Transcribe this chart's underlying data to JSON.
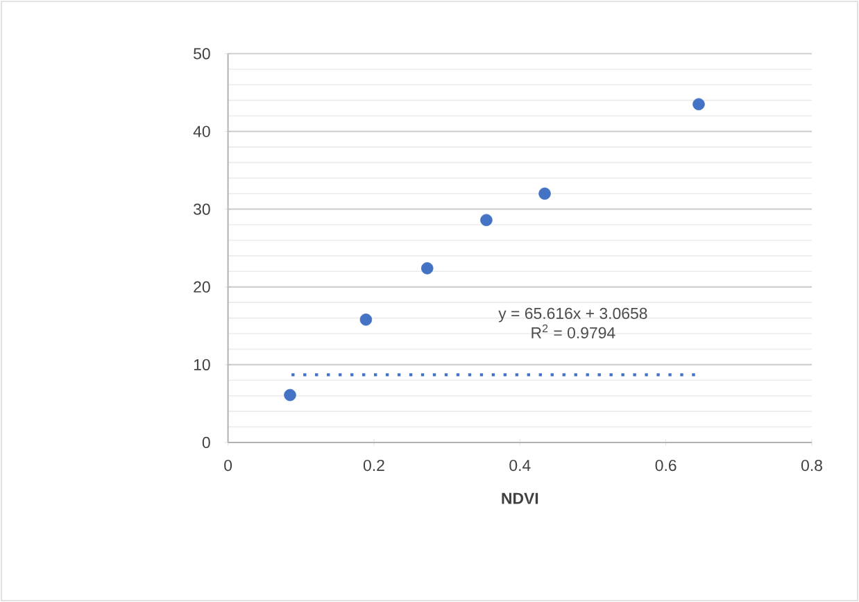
{
  "chart_data": {
    "type": "scatter",
    "xlabel": "NDVI",
    "series": [
      {
        "marker": "circle",
        "color": "#4472c4",
        "x": [
          0.085,
          0.189,
          0.273,
          0.354,
          0.434,
          0.645
        ],
        "values": [
          6.1,
          15.8,
          22.4,
          28.6,
          32.0,
          43.5
        ]
      },
      {
        "type": "line",
        "line_style": "dotted",
        "marker": "none",
        "color": "#4472c4",
        "x": [
          0.087,
          0.64
        ],
        "values": [
          8.7,
          8.7
        ]
      }
    ],
    "annotations": [
      "y = 65.616x + 3.0658",
      "R$^{2}$ = 0.9794"
    ],
    "grid": "y",
    "xlim": [
      0,
      0.8
    ],
    "ylim": [
      0,
      50
    ],
    "xticks": [
      0,
      0.2,
      0.4,
      0.6,
      0.8
    ],
    "yticks": [
      0,
      10,
      20,
      30,
      40,
      50
    ]
  }
}
